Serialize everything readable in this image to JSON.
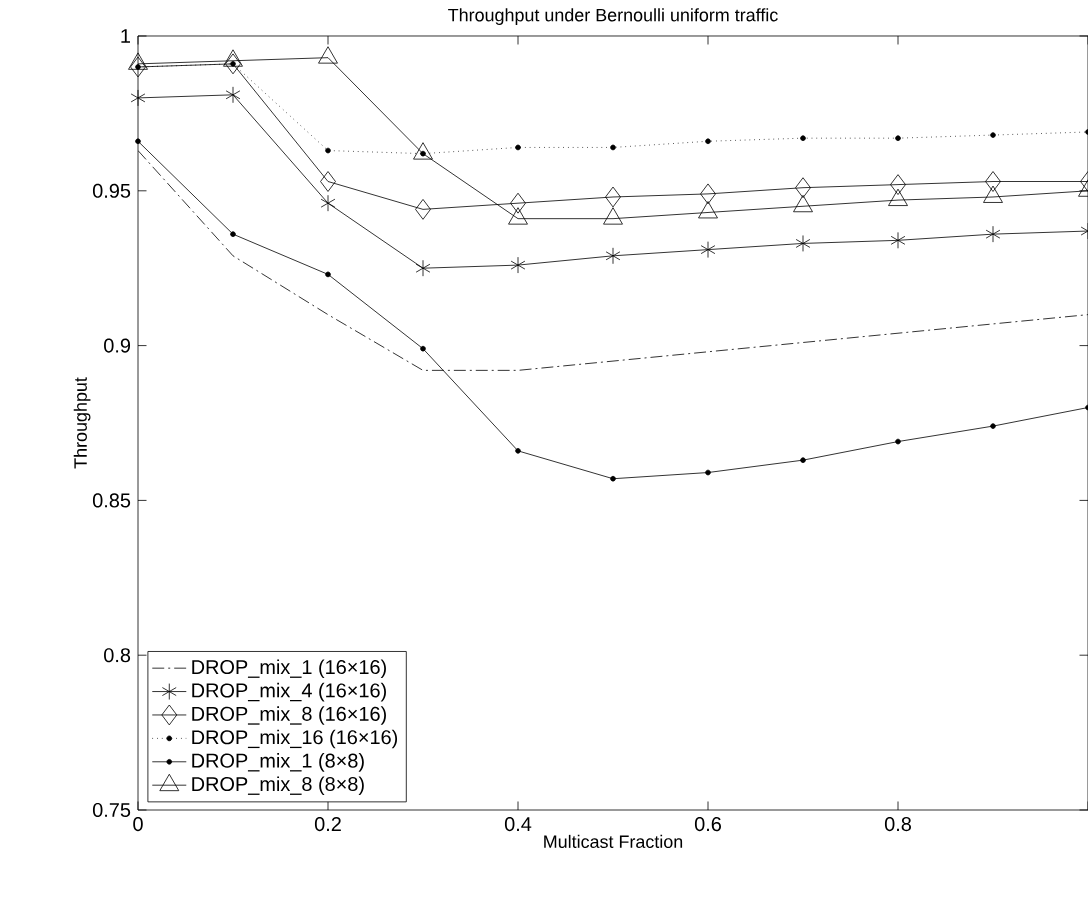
{
  "chart_data": {
    "type": "line",
    "title": "Throughput under Bernoulli uniform traffic",
    "xlabel": "Multicast Fraction",
    "ylabel": "Throughput",
    "x": [
      0,
      0.1,
      0.2,
      0.3,
      0.4,
      0.5,
      0.6,
      0.7,
      0.8,
      0.9,
      1.0
    ],
    "series": [
      {
        "name": "DROP_mix_1 (16×16)",
        "color": "#000000",
        "line_style": "dashdot",
        "marker": "none",
        "values": [
          0.963,
          0.929,
          0.91,
          0.892,
          0.892,
          0.895,
          0.898,
          0.901,
          0.904,
          0.907,
          0.91
        ]
      },
      {
        "name": "DROP_mix_4 (16×16)",
        "color": "#000000",
        "line_style": "solid",
        "marker": "cross",
        "values": [
          0.98,
          0.981,
          0.946,
          0.925,
          0.926,
          0.929,
          0.931,
          0.933,
          0.934,
          0.936,
          0.937
        ]
      },
      {
        "name": "DROP_mix_8 (16×16)",
        "color": "#000000",
        "line_style": "solid",
        "marker": "diamond",
        "values": [
          0.99,
          0.991,
          0.953,
          0.944,
          0.946,
          0.948,
          0.949,
          0.951,
          0.952,
          0.953,
          0.953
        ]
      },
      {
        "name": "DROP_mix_16 (16×16)",
        "color": "#000000",
        "line_style": "dotted",
        "marker": "circle",
        "values": [
          0.99,
          0.991,
          0.963,
          0.962,
          0.964,
          0.964,
          0.966,
          0.967,
          0.967,
          0.968,
          0.969
        ]
      },
      {
        "name": "DROP_mix_1 (8×8)",
        "color": "#000000",
        "line_style": "solid",
        "marker": "circle",
        "values": [
          0.966,
          0.936,
          0.923,
          0.899,
          0.866,
          0.857,
          0.859,
          0.863,
          0.869,
          0.874,
          0.88
        ]
      },
      {
        "name": "DROP_mix_8 (8×8)",
        "color": "#000000",
        "line_style": "solid",
        "marker": "triangle",
        "values": [
          0.991,
          0.992,
          0.993,
          0.962,
          0.941,
          0.941,
          0.943,
          0.945,
          0.947,
          0.948,
          0.95
        ]
      }
    ],
    "xlim": [
      0,
      1
    ],
    "ylim": [
      0.75,
      1
    ],
    "xticks": [
      0,
      0.2,
      0.4,
      0.6,
      0.8,
      {
        "value": 1,
        "label": null
      }
    ],
    "yticks": [
      0.75,
      0.8,
      0.85,
      0.9,
      0.95,
      1
    ],
    "grid": false,
    "legend": "bottom left"
  }
}
